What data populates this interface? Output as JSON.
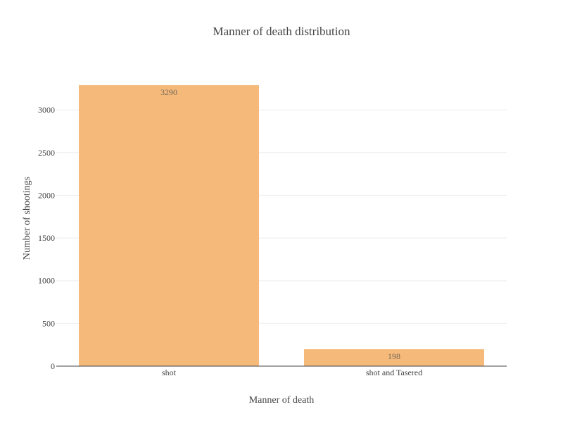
{
  "chart_data": {
    "type": "bar",
    "title": "Manner of death distribution",
    "xlabel": "Manner of death",
    "ylabel": "Number of shootings",
    "categories": [
      "shot",
      "shot and Tasered"
    ],
    "values": [
      3290,
      198
    ],
    "data_labels": [
      "3290",
      "198"
    ],
    "ylim": [
      0,
      3463
    ],
    "yticks": [
      0,
      500,
      1000,
      1500,
      2000,
      2500,
      3000
    ],
    "ytick_labels": [
      "0",
      "500",
      "1000",
      "1500",
      "2000",
      "2500",
      "3000"
    ],
    "bar_color": "#f5b97a",
    "grid": true,
    "legend": "none"
  }
}
